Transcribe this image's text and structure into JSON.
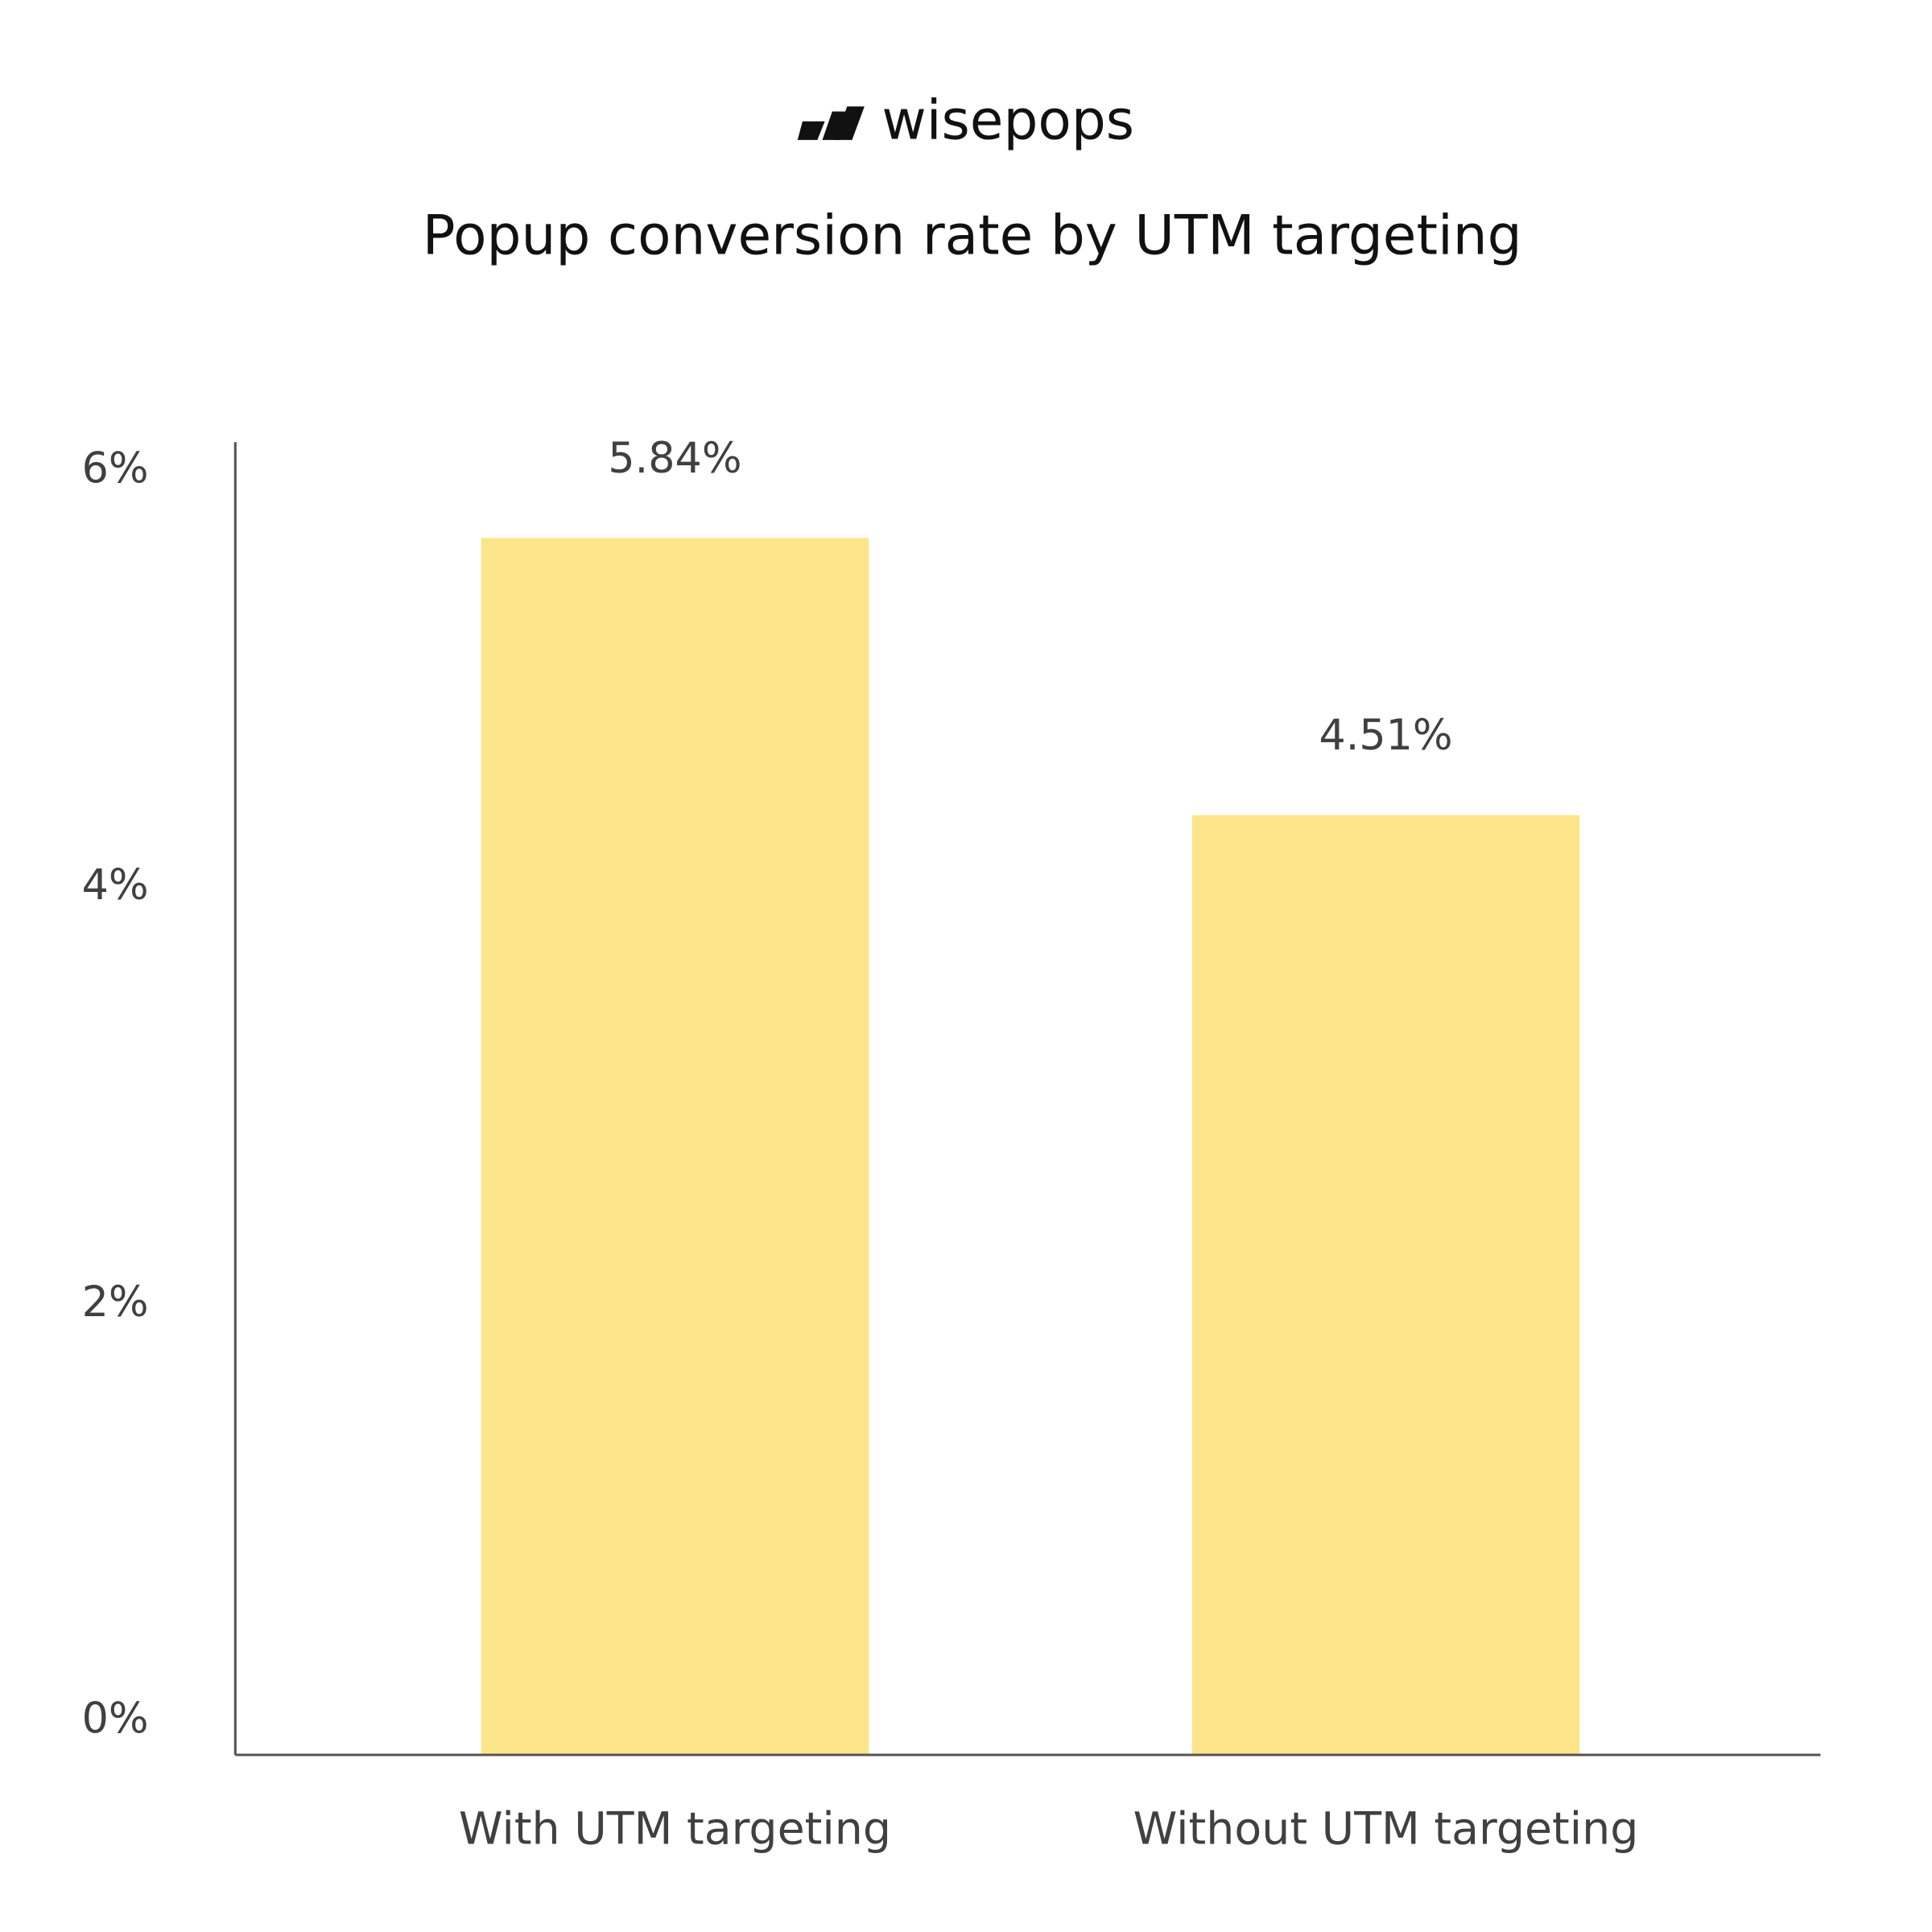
{
  "brand": "wisepops",
  "chart_data": {
    "type": "bar",
    "title": "Popup conversion rate by UTM targeting",
    "categories": [
      "With UTM targeting",
      "Without UTM targeting"
    ],
    "values": [
      5.84,
      4.51
    ],
    "value_labels": [
      "5.84%",
      "4.51%"
    ],
    "color": "#fde58a",
    "ylim": [
      0,
      6.3
    ],
    "yticks": [
      {
        "value": 0,
        "label": "0%"
      },
      {
        "value": 2,
        "label": "2%"
      },
      {
        "value": 4,
        "label": "4%"
      },
      {
        "value": 6,
        "label": "6%"
      }
    ],
    "grid": false
  }
}
